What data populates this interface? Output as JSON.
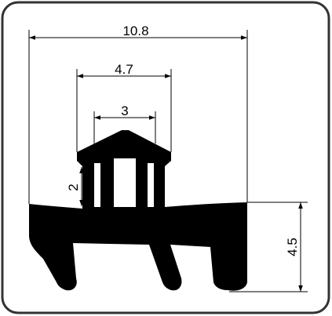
{
  "colors": {
    "frame": "#333333",
    "profile": "#000000",
    "background": "#ffffff"
  },
  "dimensions": {
    "overall_width": "10.8",
    "top_width": "4.7",
    "slot_width": "3",
    "stem_height": "2",
    "base_height": "4.5"
  }
}
